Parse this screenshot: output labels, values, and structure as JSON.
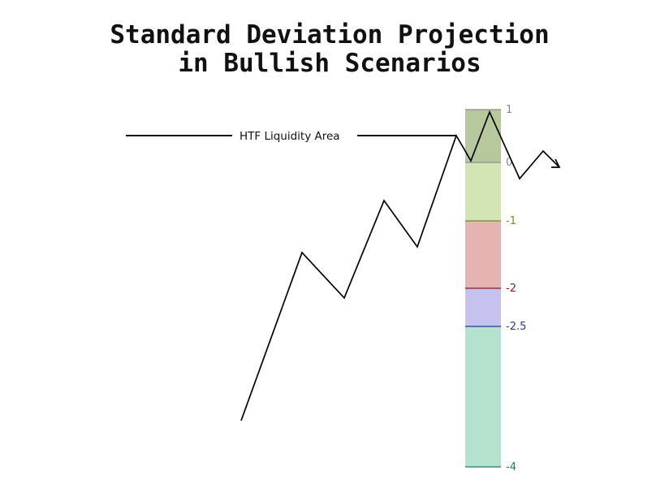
{
  "title": {
    "line1": "Standard Deviation Projection",
    "line2": "in Bullish Scenarios"
  },
  "liquidity_label": "HTF Liquidity Area",
  "levels": [
    {
      "label": "1",
      "color": "#8a8a8a"
    },
    {
      "label": "0",
      "color": "#8a8a8a"
    },
    {
      "label": "-1",
      "color": "#6f8f1c"
    },
    {
      "label": "-2",
      "color": "#8b1a1a"
    },
    {
      "label": "-2.5",
      "color": "#2b3a8f"
    },
    {
      "label": "-4",
      "color": "#158060"
    }
  ],
  "bands": [
    {
      "from": "1",
      "to": "0",
      "color": "#b6c89c"
    },
    {
      "from": "0",
      "to": "-1",
      "color": "#d3e5b4"
    },
    {
      "from": "-1",
      "to": "-2",
      "color": "#e4b3b2"
    },
    {
      "from": "-2",
      "to": "-2.5",
      "color": "#c5c2ef"
    },
    {
      "from": "-2.5",
      "to": "-4",
      "color": "#b5e2cf"
    }
  ],
  "price_path_color": "#000000",
  "arrow_icon": "arrow-head-icon"
}
